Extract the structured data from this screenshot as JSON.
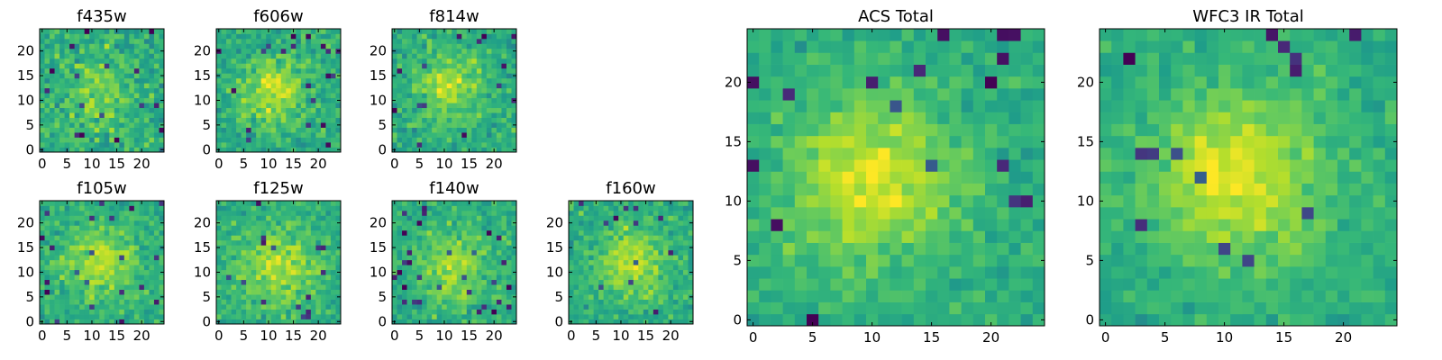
{
  "chart_data": [
    {
      "type": "heatmap",
      "title": "f435w",
      "x_ticks": [
        "0",
        "5",
        "10",
        "15",
        "20"
      ],
      "y_ticks": [
        "0",
        "5",
        "10",
        "15",
        "20"
      ],
      "xlim": [
        0,
        25
      ],
      "ylim": [
        0,
        25
      ],
      "size": 25,
      "seed": 11,
      "noise": 0.95,
      "blob": {
        "cx": 11,
        "cy": 11,
        "sigma": 5,
        "amp": 0.35
      },
      "colormap": "viridis"
    },
    {
      "type": "heatmap",
      "title": "f606w",
      "x_ticks": [
        "0",
        "5",
        "10",
        "15",
        "20"
      ],
      "y_ticks": [
        "0",
        "5",
        "10",
        "15",
        "20"
      ],
      "xlim": [
        0,
        25
      ],
      "ylim": [
        0,
        25
      ],
      "size": 25,
      "seed": 23,
      "noise": 0.85,
      "blob": {
        "cx": 11,
        "cy": 12,
        "sigma": 5,
        "amp": 0.55
      },
      "colormap": "viridis"
    },
    {
      "type": "heatmap",
      "title": "f814w",
      "x_ticks": [
        "0",
        "5",
        "10",
        "15",
        "20"
      ],
      "y_ticks": [
        "0",
        "5",
        "10",
        "15",
        "20"
      ],
      "xlim": [
        0,
        25
      ],
      "ylim": [
        0,
        25
      ],
      "size": 25,
      "seed": 37,
      "noise": 0.8,
      "blob": {
        "cx": 11,
        "cy": 13,
        "sigma": 4.5,
        "amp": 0.6
      },
      "colormap": "viridis"
    },
    {
      "type": "heatmap",
      "title": "f105w",
      "x_ticks": [
        "0",
        "5",
        "10",
        "15",
        "20"
      ],
      "y_ticks": [
        "0",
        "5",
        "10",
        "15",
        "20"
      ],
      "xlim": [
        0,
        25
      ],
      "ylim": [
        0,
        25
      ],
      "size": 25,
      "seed": 41,
      "noise": 0.7,
      "blob": {
        "cx": 12,
        "cy": 12,
        "sigma": 5,
        "amp": 0.6
      },
      "colormap": "viridis"
    },
    {
      "type": "heatmap",
      "title": "f125w",
      "x_ticks": [
        "0",
        "5",
        "10",
        "15",
        "20"
      ],
      "y_ticks": [
        "0",
        "5",
        "10",
        "15",
        "20"
      ],
      "xlim": [
        0,
        25
      ],
      "ylim": [
        0,
        25
      ],
      "size": 25,
      "seed": 53,
      "noise": 0.75,
      "blob": {
        "cx": 12,
        "cy": 11,
        "sigma": 6,
        "amp": 0.55
      },
      "colormap": "viridis"
    },
    {
      "type": "heatmap",
      "title": "f140w",
      "x_ticks": [
        "0",
        "5",
        "10",
        "15",
        "20"
      ],
      "y_ticks": [
        "0",
        "5",
        "10",
        "15",
        "20"
      ],
      "xlim": [
        0,
        25
      ],
      "ylim": [
        0,
        25
      ],
      "size": 25,
      "seed": 67,
      "noise": 0.75,
      "blob": {
        "cx": 12,
        "cy": 11,
        "sigma": 5,
        "amp": 0.55
      },
      "colormap": "viridis"
    },
    {
      "type": "heatmap",
      "title": "f160w",
      "x_ticks": [
        "0",
        "5",
        "10",
        "15",
        "20"
      ],
      "y_ticks": [
        "0",
        "5",
        "10",
        "15",
        "20"
      ],
      "xlim": [
        0,
        25
      ],
      "ylim": [
        0,
        25
      ],
      "size": 25,
      "seed": 79,
      "noise": 0.75,
      "blob": {
        "cx": 12,
        "cy": 12,
        "sigma": 5,
        "amp": 0.6
      },
      "colormap": "viridis"
    },
    {
      "type": "heatmap",
      "title": "ACS Total",
      "x_ticks": [
        "0",
        "5",
        "10",
        "15",
        "20"
      ],
      "y_ticks": [
        "0",
        "5",
        "10",
        "15",
        "20"
      ],
      "xlim": [
        0,
        25
      ],
      "ylim": [
        0,
        25
      ],
      "size": 25,
      "seed": 97,
      "noise": 0.6,
      "blob": {
        "cx": 10,
        "cy": 12,
        "sigma": 5,
        "amp": 0.7
      },
      "colormap": "viridis"
    },
    {
      "type": "heatmap",
      "title": "WFC3 IR Total",
      "x_ticks": [
        "0",
        "5",
        "10",
        "15",
        "20"
      ],
      "y_ticks": [
        "0",
        "5",
        "10",
        "15",
        "20"
      ],
      "xlim": [
        0,
        25
      ],
      "ylim": [
        0,
        25
      ],
      "size": 25,
      "seed": 113,
      "noise": 0.55,
      "blob": {
        "cx": 11,
        "cy": 12,
        "sigma": 5,
        "amp": 0.75
      },
      "colormap": "viridis"
    }
  ]
}
